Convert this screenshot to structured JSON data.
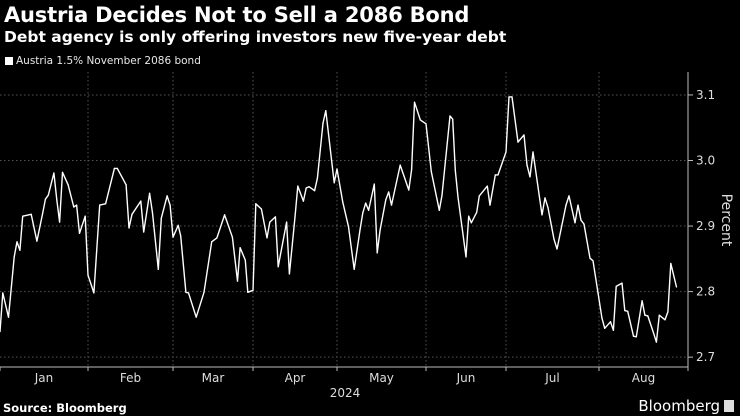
{
  "header": {
    "title": "Austria Decides Not to Sell a 2086 Bond",
    "subtitle": "Debt agency is only offering investors new five-year debt"
  },
  "footer": {
    "source": "Source: Bloomberg",
    "logo": "Bloomberg"
  },
  "chart_data": {
    "type": "line",
    "title": "Austria Decides Not to Sell a 2086 Bond",
    "subtitle": "Debt agency is only offering investors new five-year debt",
    "xlabel": "2024",
    "ylabel": "Percent",
    "ylim": [
      2.685,
      3.135
    ],
    "yticks": [
      "2.7",
      "2.8",
      "2.9",
      "3.0",
      "3.1"
    ],
    "ytick_values": [
      2.7,
      2.8,
      2.9,
      3.0,
      3.1
    ],
    "xticks": [
      "Jan",
      "Feb",
      "Mar",
      "Apr",
      "May",
      "Jun",
      "Jul",
      "Aug"
    ],
    "grid": true,
    "legend_position": "top-left",
    "background": "#000000",
    "line_color": "#ffffff",
    "series": [
      {
        "name": "Austria 1.5% November 2086 bond",
        "x": [
          "2024-01-01",
          "2024-01-02",
          "2024-01-04",
          "2024-01-06",
          "2024-01-07",
          "2024-01-08",
          "2024-01-09",
          "2024-01-12",
          "2024-01-14",
          "2024-01-16",
          "2024-01-17",
          "2024-01-18",
          "2024-01-20",
          "2024-01-21",
          "2024-01-22",
          "2024-01-23",
          "2024-01-25",
          "2024-01-27",
          "2024-01-28",
          "2024-01-29",
          "2024-01-31",
          "2024-02-01",
          "2024-02-03",
          "2024-02-05",
          "2024-02-07",
          "2024-02-10",
          "2024-02-11",
          "2024-02-14",
          "2024-02-15",
          "2024-02-16",
          "2024-02-19",
          "2024-02-20",
          "2024-02-22",
          "2024-02-23",
          "2024-02-25",
          "2024-02-26",
          "2024-02-28",
          "2024-02-29",
          "2024-03-01",
          "2024-03-03",
          "2024-03-04",
          "2024-03-06",
          "2024-03-07",
          "2024-03-10",
          "2024-03-13",
          "2024-03-16",
          "2024-03-18",
          "2024-03-21",
          "2024-03-24",
          "2024-03-26",
          "2024-03-27",
          "2024-03-29",
          "2024-03-30",
          "2024-04-01",
          "2024-04-02",
          "2024-04-04",
          "2024-04-06",
          "2024-04-07",
          "2024-04-09",
          "2024-04-10",
          "2024-04-13",
          "2024-04-14",
          "2024-04-16",
          "2024-04-17",
          "2024-04-19",
          "2024-04-20",
          "2024-04-21",
          "2024-04-23",
          "2024-04-24",
          "2024-04-26",
          "2024-04-27",
          "2024-04-30",
          "2024-05-01",
          "2024-05-03",
          "2024-05-05",
          "2024-05-07",
          "2024-05-09",
          "2024-05-10",
          "2024-05-11",
          "2024-05-12",
          "2024-05-14",
          "2024-05-15",
          "2024-05-16",
          "2024-05-18",
          "2024-05-19",
          "2024-05-20",
          "2024-05-23",
          "2024-05-26",
          "2024-05-27",
          "2024-05-28",
          "2024-05-30",
          "2024-06-01",
          "2024-06-03",
          "2024-06-06",
          "2024-06-07",
          "2024-06-10",
          "2024-06-11",
          "2024-06-12",
          "2024-06-13",
          "2024-06-16",
          "2024-06-17",
          "2024-06-18",
          "2024-06-20",
          "2024-06-21",
          "2024-06-24",
          "2024-06-25",
          "2024-06-27",
          "2024-06-28",
          "2024-07-01",
          "2024-07-02",
          "2024-07-03",
          "2024-07-05",
          "2024-07-07",
          "2024-07-08",
          "2024-07-09",
          "2024-07-10",
          "2024-07-13",
          "2024-07-14",
          "2024-07-15",
          "2024-07-17",
          "2024-07-18",
          "2024-07-21",
          "2024-07-22",
          "2024-07-24",
          "2024-07-25",
          "2024-07-26",
          "2024-07-27",
          "2024-07-29",
          "2024-07-30",
          "2024-08-02",
          "2024-08-03",
          "2024-08-05",
          "2024-08-06",
          "2024-08-07",
          "2024-08-09",
          "2024-08-10",
          "2024-08-11",
          "2024-08-13",
          "2024-08-14",
          "2024-08-16",
          "2024-08-17",
          "2024-08-18",
          "2024-08-20",
          "2024-08-21",
          "2024-08-22",
          "2024-08-24",
          "2024-08-25",
          "2024-08-26",
          "2024-08-28"
        ],
        "y": [
          2.739,
          2.798,
          2.761,
          2.853,
          2.876,
          2.863,
          2.915,
          2.918,
          2.877,
          2.919,
          2.941,
          2.947,
          2.981,
          2.94,
          2.906,
          2.982,
          2.963,
          2.929,
          2.932,
          2.889,
          2.915,
          2.825,
          2.798,
          2.932,
          2.934,
          2.988,
          2.988,
          2.963,
          2.897,
          2.918,
          2.938,
          2.891,
          2.95,
          2.92,
          2.834,
          2.912,
          2.946,
          2.932,
          2.883,
          2.901,
          2.885,
          2.799,
          2.798,
          2.761,
          2.799,
          2.876,
          2.882,
          2.917,
          2.883,
          2.816,
          2.867,
          2.848,
          2.799,
          2.802,
          2.934,
          2.926,
          2.882,
          2.906,
          2.914,
          2.838,
          2.906,
          2.827,
          2.914,
          2.961,
          2.938,
          2.958,
          2.96,
          2.954,
          2.973,
          3.057,
          3.076,
          2.966,
          2.987,
          2.937,
          2.899,
          2.834,
          2.894,
          2.92,
          2.935,
          2.924,
          2.964,
          2.859,
          2.894,
          2.94,
          2.952,
          2.932,
          2.993,
          2.955,
          2.986,
          3.089,
          3.062,
          3.056,
          2.983,
          2.924,
          2.947,
          3.068,
          3.063,
          2.985,
          2.944,
          2.853,
          2.915,
          2.905,
          2.921,
          2.946,
          2.961,
          2.932,
          2.978,
          2.978,
          3.013,
          3.097,
          3.097,
          3.028,
          3.039,
          2.993,
          2.975,
          3.013,
          2.917,
          2.943,
          2.928,
          2.88,
          2.865,
          2.932,
          2.946,
          2.905,
          2.932,
          2.909,
          2.903,
          2.851,
          2.847,
          2.76,
          2.744,
          2.754,
          2.741,
          2.808,
          2.813,
          2.771,
          2.77,
          2.732,
          2.731,
          2.786,
          2.764,
          2.763,
          2.737,
          2.723,
          2.764,
          2.757,
          2.769,
          2.843,
          2.807
        ]
      }
    ]
  }
}
